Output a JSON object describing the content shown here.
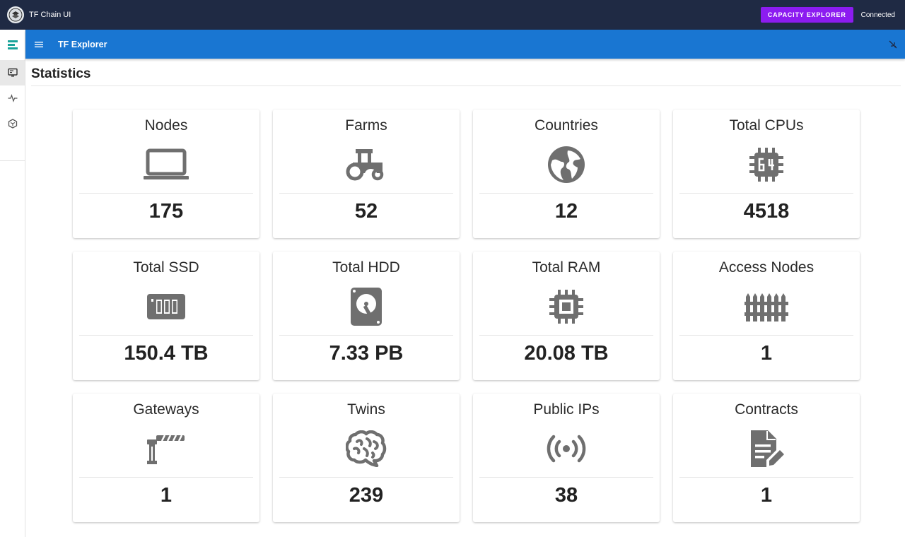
{
  "topbar": {
    "app_title": "TF Chain UI",
    "capacity_button": "CAPACITY EXPLORER",
    "status": "Connected",
    "logo_icon": "tf-logo-icon"
  },
  "appbar": {
    "title": "TF Explorer",
    "menu_icon": "menu-icon",
    "theme_icon": "theme-toggle-icon"
  },
  "rail": {
    "items": [
      "explorer-icon",
      "monitor-icon",
      "pulse-icon",
      "cube-icon"
    ]
  },
  "page": {
    "title": "Statistics"
  },
  "stats": [
    {
      "label": "Nodes",
      "value": "175",
      "icon": "laptop-icon"
    },
    {
      "label": "Farms",
      "value": "52",
      "icon": "tractor-icon"
    },
    {
      "label": "Countries",
      "value": "12",
      "icon": "globe-icon"
    },
    {
      "label": "Total CPUs",
      "value": "4518",
      "icon": "cpu-64-icon"
    },
    {
      "label": "Total SSD",
      "value": "150.4 TB",
      "icon": "ssd-icon"
    },
    {
      "label": "Total HDD",
      "value": "7.33 PB",
      "icon": "harddisk-icon"
    },
    {
      "label": "Total RAM",
      "value": "20.08 TB",
      "icon": "memory-chip-icon"
    },
    {
      "label": "Access Nodes",
      "value": "1",
      "icon": "fence-icon"
    },
    {
      "label": "Gateways",
      "value": "1",
      "icon": "boom-gate-icon"
    },
    {
      "label": "Twins",
      "value": "239",
      "icon": "brain-icon"
    },
    {
      "label": "Public IPs",
      "value": "38",
      "icon": "broadcast-icon"
    },
    {
      "label": "Contracts",
      "value": "1",
      "icon": "file-document-edit-icon"
    }
  ],
  "colors": {
    "topbar": "#1f2a44",
    "accent": "#8c1cf0",
    "appbar": "#1976d2",
    "icon": "#6f6f6f"
  }
}
